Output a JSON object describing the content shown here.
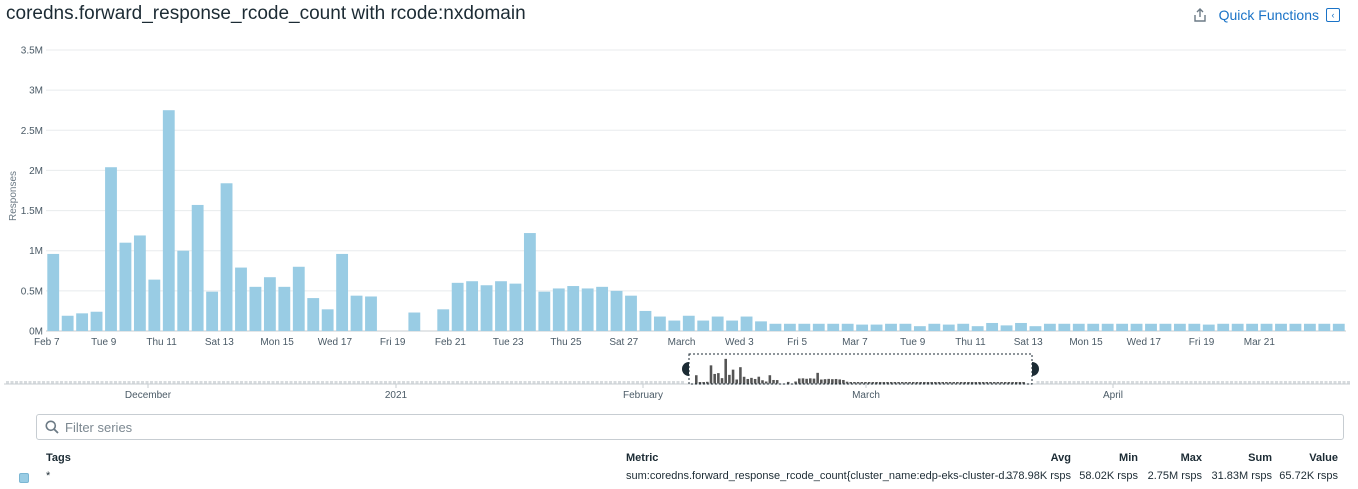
{
  "header": {
    "title": "coredns.forward_response_rcode_count with rcode:nxdomain",
    "share_icon": "share-icon",
    "quick_functions_label": "Quick Functions",
    "quick_functions_icon": "collapse-panel-icon"
  },
  "chart_data": {
    "type": "bar",
    "ylabel": "Responses",
    "yticks": [
      "0M",
      "0.5M",
      "1M",
      "1.5M",
      "2M",
      "2.5M",
      "3M",
      "3.5M"
    ],
    "ylim": [
      0,
      3500000
    ],
    "grid": true,
    "color": "#99cce4",
    "xticks": [
      "Feb 7",
      "Tue 9",
      "Thu 11",
      "Sat 13",
      "Mon 15",
      "Wed 17",
      "Fri 19",
      "Feb 21",
      "Tue 23",
      "Thu 25",
      "Sat 27",
      "March",
      "Wed 3",
      "Fri 5",
      "Mar 7",
      "Tue 9",
      "Thu 11",
      "Sat 13",
      "Mon 15",
      "Wed 17",
      "Fri 19",
      "Mar 21"
    ],
    "values": [
      960000,
      190000,
      220000,
      240000,
      2040000,
      1100000,
      1190000,
      640000,
      2750000,
      1000000,
      1570000,
      490000,
      1840000,
      790000,
      550000,
      670000,
      550000,
      800000,
      410000,
      270000,
      960000,
      440000,
      430000,
      0,
      0,
      230000,
      0,
      270000,
      600000,
      620000,
      570000,
      620000,
      590000,
      1220000,
      490000,
      530000,
      560000,
      530000,
      550000,
      500000,
      440000,
      250000,
      180000,
      130000,
      190000,
      130000,
      180000,
      130000,
      180000,
      120000,
      90000,
      90000,
      90000,
      90000,
      90000,
      90000,
      80000,
      80000,
      90000,
      90000,
      60000,
      90000,
      80000,
      90000,
      60000,
      100000,
      70000,
      100000,
      60000,
      90000,
      90000,
      90000,
      90000,
      90000,
      90000,
      90000,
      90000,
      90000,
      90000,
      90000,
      80000,
      90000,
      90000,
      90000,
      90000,
      90000,
      90000,
      90000,
      90000,
      90000
    ]
  },
  "overview": {
    "labels": [
      "December",
      "2021",
      "February",
      "March",
      "April"
    ]
  },
  "filter": {
    "placeholder": "Filter series",
    "search_icon": "search-icon"
  },
  "legend": {
    "headers": {
      "tags": "Tags",
      "metric": "Metric",
      "avg": "Avg",
      "min": "Min",
      "max": "Max",
      "sum": "Sum",
      "value": "Value"
    },
    "rows": [
      {
        "tags": "*",
        "metric": "sum:coredns.forward_response_rcode_count{cluster_name:edp-eks-cluster-d...",
        "avg": "378.98K rsps",
        "min": "58.02K rsps",
        "max": "2.75M rsps",
        "sum": "31.83M rsps",
        "value": "65.72K rsps",
        "color": "#99cce4"
      }
    ]
  }
}
